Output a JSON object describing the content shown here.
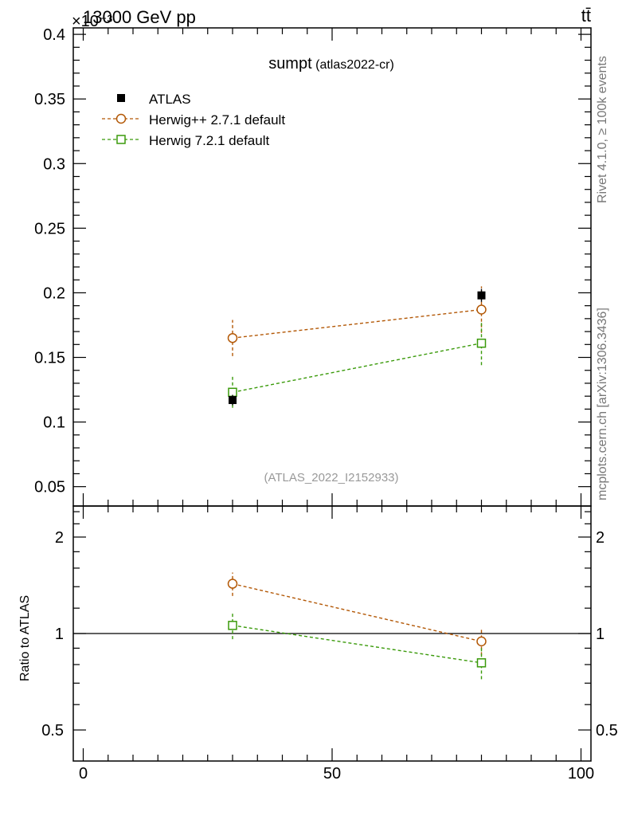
{
  "header": {
    "process": "13000 GeV pp",
    "exponent_label": "×10⁻³",
    "final_state": "tt̄"
  },
  "side_labels": {
    "rivet": "Rivet 4.1.0, ≥ 100k events",
    "mcplots": "mcplots.cern.ch [arXiv:1306.3436]"
  },
  "chart_data": [
    {
      "type": "scatter",
      "title": "sumpt",
      "subtitle": "(atlas2022-cr)",
      "watermark": "(ATLAS_2022_I2152933)",
      "xlabel": "",
      "ylabel": "",
      "xlim": [
        -2,
        102
      ],
      "ylim": [
        0.035,
        0.405
      ],
      "y_scale_factor": "1e-3",
      "y_ticks": [
        0.05,
        0.1,
        0.15,
        0.2,
        0.25,
        0.3,
        0.35,
        0.4
      ],
      "y_tick_labels": [
        "0.05",
        "0.1",
        "0.15",
        "0.2",
        "0.25",
        "0.3",
        "0.35",
        "0.4"
      ],
      "legend_position": "top-left",
      "series": [
        {
          "name": "ATLAS",
          "color": "#000000",
          "marker": "filled-square",
          "line": "none",
          "x": [
            30,
            80
          ],
          "y": [
            0.117,
            0.198
          ],
          "err": [
            0.004,
            0.005
          ]
        },
        {
          "name": "Herwig++ 2.7.1 default",
          "color": "#b35806",
          "marker": "open-circle",
          "line": "dashed",
          "x": [
            30,
            80
          ],
          "y": [
            0.165,
            0.187
          ],
          "err": [
            0.014,
            0.018
          ]
        },
        {
          "name": "Herwig 7.2.1 default",
          "color": "#3a9a0a",
          "marker": "open-square",
          "line": "dashed",
          "x": [
            30,
            80
          ],
          "y": [
            0.123,
            0.161
          ],
          "err": [
            0.012,
            0.017
          ]
        }
      ]
    },
    {
      "type": "scatter",
      "ylabel": "Ratio to ATLAS",
      "xlabel": "",
      "yscale": "log",
      "ylim": [
        0.4,
        2.5
      ],
      "xlim": [
        -2,
        102
      ],
      "x_ticks": [
        0,
        50,
        100
      ],
      "x_tick_labels": [
        "0",
        "50",
        "100"
      ],
      "y_ticks": [
        0.5,
        1,
        2
      ],
      "y_tick_labels": [
        "0.5",
        "1",
        "2"
      ],
      "reference_line": 1,
      "series": [
        {
          "name": "Herwig++ 2.7.1 default",
          "color": "#b35806",
          "marker": "open-circle",
          "line": "dashed",
          "x": [
            30,
            80
          ],
          "y": [
            1.43,
            0.945
          ],
          "err": [
            0.12,
            0.09
          ]
        },
        {
          "name": "Herwig 7.2.1 default",
          "color": "#3a9a0a",
          "marker": "open-square",
          "line": "dashed",
          "x": [
            30,
            80
          ],
          "y": [
            1.06,
            0.81
          ],
          "err": [
            0.1,
            0.09
          ]
        }
      ]
    }
  ]
}
